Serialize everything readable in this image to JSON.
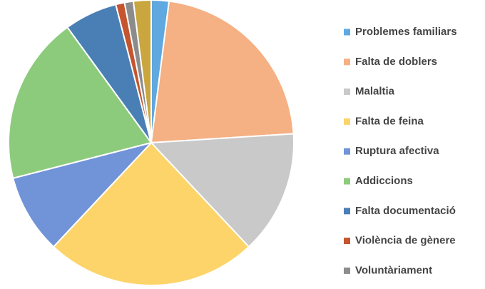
{
  "chart_data": {
    "type": "pie",
    "categories": [
      "Problemes familiars",
      "Falta de doblers",
      "Malaltia",
      "Falta de feina",
      "Ruptura afectiva",
      "Addiccions",
      "Falta documentació",
      "Violència de gènere",
      "Voluntàriament",
      null
    ],
    "values": [
      2,
      22,
      14,
      24,
      9,
      19,
      6,
      1,
      1,
      2
    ],
    "colors": [
      "#5fa8e0",
      "#f5b083",
      "#c9c9c9",
      "#fcd46a",
      "#7193d8",
      "#8dcb7c",
      "#4a7fb5",
      "#c4552e",
      "#8c8c8c",
      "#c9a63e"
    ],
    "legend": "right"
  }
}
